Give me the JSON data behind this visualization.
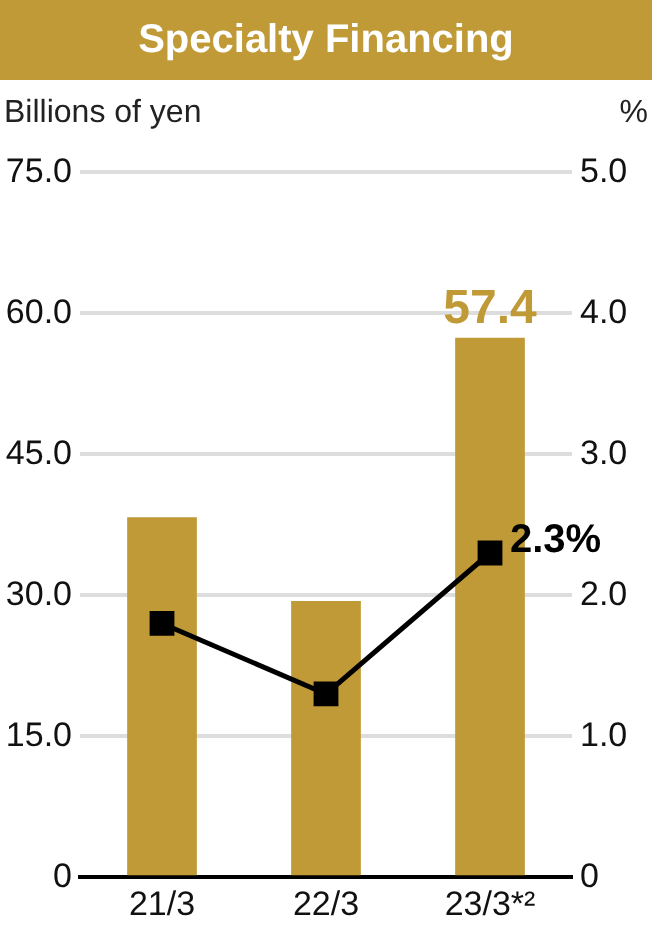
{
  "chart_data": {
    "type": "bar",
    "title": "Specialty Financing",
    "ylabel": "Billions of yen",
    "y2label": "%",
    "categories": [
      "21/3",
      "22/3",
      "23/3*²"
    ],
    "series": [
      {
        "color": "#c09a36",
        "values": [
          38.3,
          29.4,
          57.4
        ],
        "value_labels": [
          null,
          null,
          "57.4"
        ]
      },
      {
        "type": "line",
        "axis": "y2",
        "color": "#000000",
        "values": [
          1.8,
          1.3,
          2.3
        ],
        "value_labels": [
          null,
          null,
          "2.3%"
        ]
      }
    ],
    "ylim": [
      0,
      75
    ],
    "yticks": [
      0,
      {
        "value": 15,
        "label": "15.0"
      },
      {
        "value": 30,
        "label": "30.0"
      },
      {
        "value": 45,
        "label": "45.0"
      },
      {
        "value": 60,
        "label": "60.0"
      },
      {
        "value": 75,
        "label": "75.0"
      }
    ],
    "y2lim": [
      0,
      5
    ],
    "y2ticks": [
      0,
      {
        "value": 1,
        "label": "1.0"
      },
      {
        "value": 2,
        "label": "2.0"
      },
      {
        "value": 3,
        "label": "3.0"
      },
      {
        "value": 4,
        "label": "4.0"
      },
      {
        "value": 5,
        "label": "5.0"
      }
    ],
    "grid": "y",
    "legend": false,
    "marker": "square",
    "line_style": "solid"
  }
}
